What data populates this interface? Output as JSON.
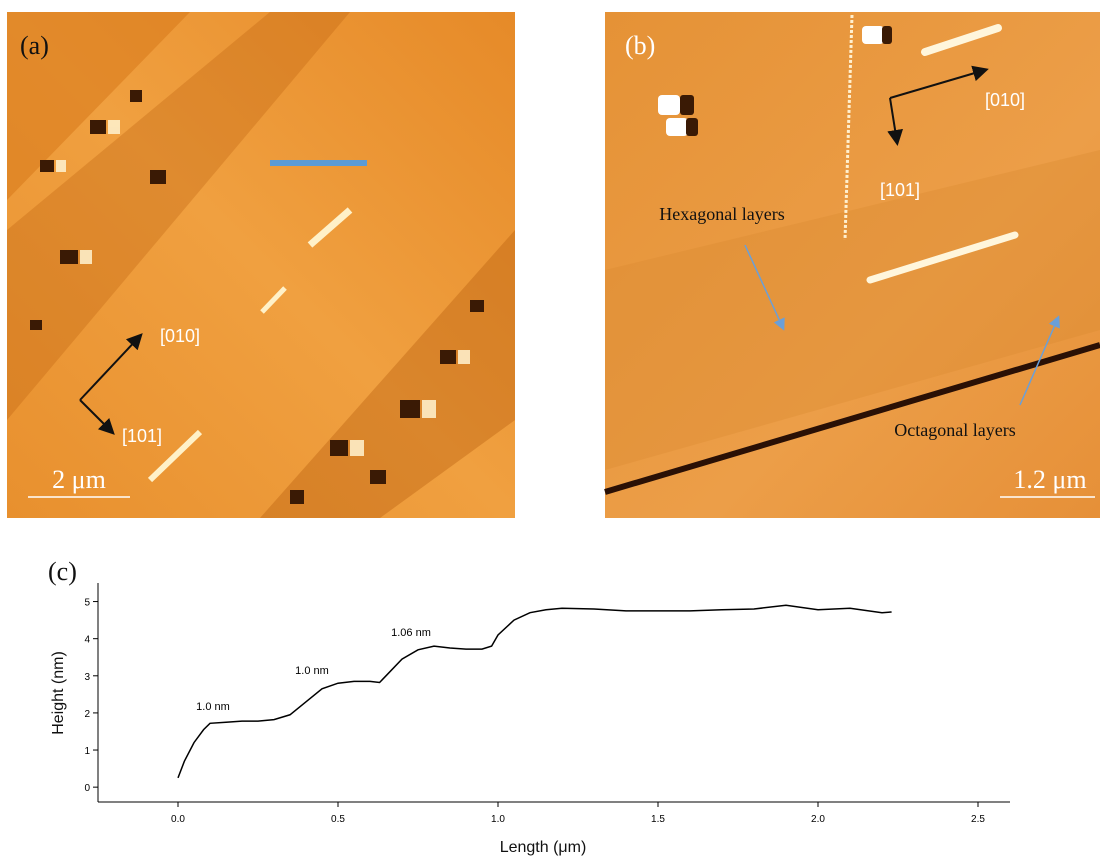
{
  "panels": [
    {
      "label": "(a)",
      "scale_bar": "2 μm",
      "directions": [
        "[010]",
        "[101]"
      ]
    },
    {
      "label": "(b)",
      "scale_bar": "1.2 μm",
      "directions": [
        "[010]",
        "[101]"
      ],
      "annotations": [
        "Hexagonal layers",
        "Octagonal layers"
      ]
    }
  ],
  "chart_data": {
    "type": "line",
    "panel_label": "(c)",
    "x_label": "Length (μm)",
    "y_label": "Height (nm)",
    "x": [
      0,
      0.02,
      0.05,
      0.08,
      0.1,
      0.15,
      0.2,
      0.25,
      0.3,
      0.35,
      0.4,
      0.45,
      0.5,
      0.55,
      0.6,
      0.63,
      0.65,
      0.7,
      0.75,
      0.8,
      0.85,
      0.9,
      0.95,
      0.98,
      1.0,
      1.05,
      1.1,
      1.15,
      1.2,
      1.3,
      1.4,
      1.5,
      1.6,
      1.7,
      1.8,
      1.9,
      2.0,
      2.1,
      2.2,
      2.23
    ],
    "series": [
      {
        "color": "#000000",
        "values": [
          0.25,
          0.7,
          1.2,
          1.55,
          1.72,
          1.75,
          1.78,
          1.78,
          1.82,
          1.95,
          2.3,
          2.65,
          2.8,
          2.85,
          2.85,
          2.82,
          3.0,
          3.45,
          3.7,
          3.8,
          3.75,
          3.72,
          3.72,
          3.8,
          4.1,
          4.5,
          4.7,
          4.78,
          4.82,
          4.8,
          4.75,
          4.75,
          4.75,
          4.78,
          4.8,
          4.9,
          4.78,
          4.82,
          4.7,
          4.72
        ]
      }
    ],
    "xlim": [
      -0.25,
      2.6
    ],
    "ylim": [
      -0.4,
      5.5
    ],
    "xticks": [
      {
        "value": 0,
        "label": "0.0"
      },
      {
        "value": 0.5,
        "label": "0.5"
      },
      {
        "value": 1,
        "label": "1.0"
      },
      {
        "value": 1.5,
        "label": "1.5"
      },
      {
        "value": 2,
        "label": "2.0"
      },
      {
        "value": 2.5,
        "label": "2.5"
      }
    ],
    "yticks": [
      0,
      1,
      2,
      3,
      4,
      5
    ],
    "annotations": [
      "1.0 nm",
      "1.0 nm",
      "1.06 nm"
    ]
  }
}
